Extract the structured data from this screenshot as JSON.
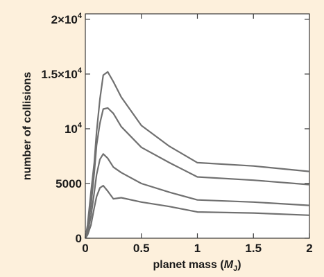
{
  "chart_data": {
    "type": "line",
    "title": "",
    "xlabel": {
      "main": "planet mass (",
      "symbol": "M",
      "subscript": "J",
      "close": ")"
    },
    "ylabel": "number of collisions",
    "xlim": [
      0,
      2
    ],
    "ylim": [
      0,
      20500
    ],
    "grid": false,
    "legend": "none",
    "x_ticks": [
      {
        "value": 0,
        "label": "0"
      },
      {
        "value": 0.5,
        "label": "0.5"
      },
      {
        "value": 1,
        "label": "1"
      },
      {
        "value": 1.5,
        "label": "1.5"
      },
      {
        "value": 2,
        "label": "2"
      }
    ],
    "y_ticks": [
      {
        "value": 0,
        "label": "0",
        "sup": ""
      },
      {
        "value": 5000,
        "label": "5000",
        "sup": ""
      },
      {
        "value": 10000,
        "label": "10",
        "sup": "4"
      },
      {
        "value": 15000,
        "label": "1.5×10",
        "sup": "4"
      },
      {
        "value": 20000,
        "label": "2×10",
        "sup": "4"
      }
    ],
    "series": [
      {
        "x": [
          0,
          0.02,
          0.05,
          0.08,
          0.1,
          0.13,
          0.16,
          0.2,
          0.25,
          0.32,
          0.5,
          0.75,
          1.0,
          1.5,
          2.0
        ],
        "y": [
          0,
          1200,
          4200,
          6900,
          9700,
          12700,
          14900,
          15200,
          14300,
          12900,
          10300,
          8400,
          6900,
          6600,
          6100
        ]
      },
      {
        "x": [
          0,
          0.02,
          0.05,
          0.08,
          0.1,
          0.13,
          0.16,
          0.2,
          0.25,
          0.32,
          0.5,
          0.75,
          1.0,
          1.5,
          2.0
        ],
        "y": [
          0,
          800,
          3000,
          6000,
          8500,
          10500,
          11800,
          11900,
          11400,
          10200,
          8300,
          6900,
          5600,
          5300,
          4900
        ]
      },
      {
        "x": [
          0,
          0.02,
          0.05,
          0.08,
          0.1,
          0.13,
          0.16,
          0.2,
          0.25,
          0.32,
          0.5,
          0.75,
          1.0,
          1.5,
          2.0
        ],
        "y": [
          0,
          500,
          2000,
          4200,
          5800,
          7200,
          7700,
          7300,
          6500,
          6000,
          5000,
          4200,
          3500,
          3300,
          3000
        ]
      },
      {
        "x": [
          0,
          0.02,
          0.05,
          0.08,
          0.1,
          0.13,
          0.16,
          0.2,
          0.25,
          0.32,
          0.5,
          0.75,
          1.0,
          1.5,
          2.0
        ],
        "y": [
          0,
          300,
          1200,
          2800,
          3800,
          4600,
          4800,
          4300,
          3600,
          3700,
          3300,
          2900,
          2400,
          2300,
          2100
        ]
      }
    ],
    "colors": {
      "background": "#fdf0dc",
      "plot_background": "#ffffff",
      "line": "#707070",
      "text": "#1a1a1a"
    }
  }
}
